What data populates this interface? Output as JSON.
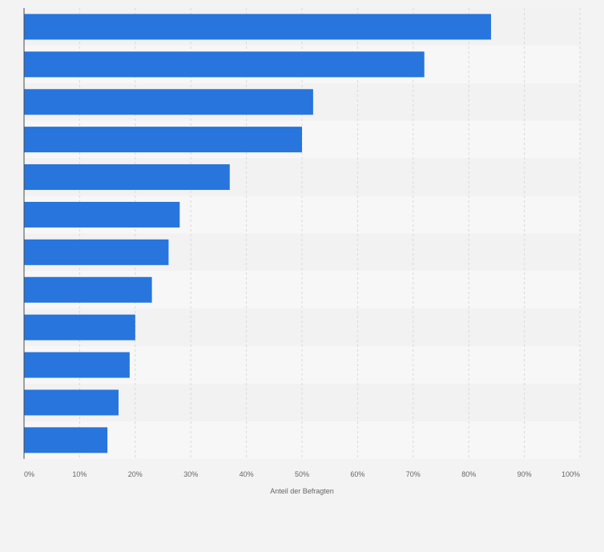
{
  "chart_data": {
    "type": "bar",
    "orientation": "horizontal",
    "categories": [
      "",
      "",
      "",
      "",
      "",
      "",
      "",
      "",
      "",
      "",
      "",
      ""
    ],
    "values": [
      84,
      72,
      52,
      50,
      37,
      28,
      26,
      23,
      20,
      19,
      17,
      15
    ],
    "xlabel": "Anteil der Befragten",
    "ylabel": "",
    "xlim": [
      0,
      100
    ],
    "x_ticks": [
      "0%",
      "10%",
      "20%",
      "30%",
      "40%",
      "50%",
      "60%",
      "70%",
      "80%",
      "90%",
      "100%"
    ],
    "grid": true,
    "legend": "none",
    "colors": {
      "bar": "#2775dd",
      "band_dark": "#f2f2f2",
      "band_light": "#f7f7f7",
      "grid": "#d9d9d9",
      "axis": "#4a4a4a",
      "background": "#f3f3f3"
    }
  }
}
